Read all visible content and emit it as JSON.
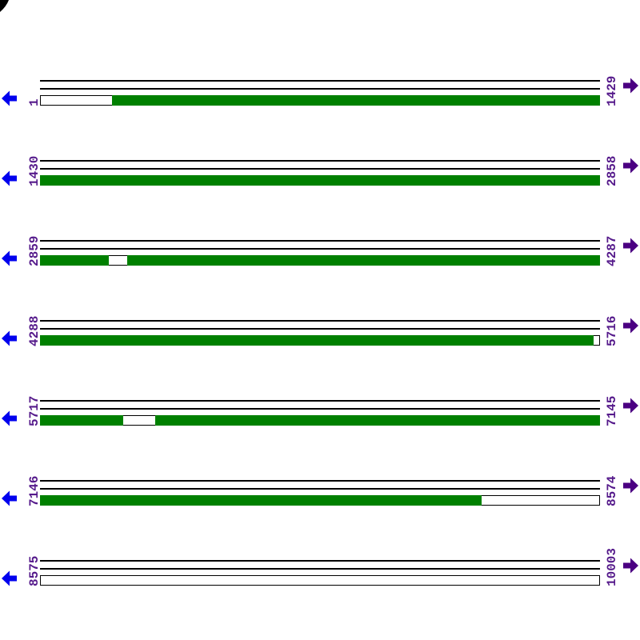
{
  "diagram": {
    "kind": "sequence-alignment-coverage",
    "row_span_bases": 1429,
    "colors": {
      "match": "#008000",
      "empty": "#ffffff",
      "line": "#000000",
      "label": "#551a8b",
      "left_arrow": "#0000ee",
      "right_arrow": "#4b0082"
    },
    "icons": {
      "left_arrow": "arrow-pointing-left",
      "right_arrow": "arrow-pointing-right",
      "clipped_glyph": "partial-character-cut-off-at-top-left"
    },
    "rows": [
      {
        "start_label": "1",
        "end_label": "1429",
        "segments": [
          {
            "type": "empty",
            "from": 0,
            "to": 0.1286
          },
          {
            "type": "match",
            "from": 0.1286,
            "to": 1
          }
        ]
      },
      {
        "start_label": "1430",
        "end_label": "2858",
        "segments": [
          {
            "type": "match",
            "from": 0,
            "to": 1
          }
        ]
      },
      {
        "start_label": "2859",
        "end_label": "4287",
        "segments": [
          {
            "type": "match",
            "from": 0,
            "to": 0.1229
          },
          {
            "type": "empty",
            "from": 0.1229,
            "to": 0.1557
          },
          {
            "type": "match",
            "from": 0.1557,
            "to": 1
          }
        ]
      },
      {
        "start_label": "4288",
        "end_label": "5716",
        "segments": [
          {
            "type": "match",
            "from": 0,
            "to": 0.9886
          },
          {
            "type": "empty",
            "from": 0.9886,
            "to": 1
          }
        ]
      },
      {
        "start_label": "5717",
        "end_label": "7145",
        "segments": [
          {
            "type": "match",
            "from": 0,
            "to": 0.1486
          },
          {
            "type": "empty",
            "from": 0.1486,
            "to": 0.2057
          },
          {
            "type": "match",
            "from": 0.2057,
            "to": 1
          }
        ]
      },
      {
        "start_label": "7146",
        "end_label": "8574",
        "segments": [
          {
            "type": "match",
            "from": 0,
            "to": 0.7886
          },
          {
            "type": "empty",
            "from": 0.7886,
            "to": 1
          }
        ]
      },
      {
        "start_label": "8575",
        "end_label": "10003",
        "segments": [
          {
            "type": "empty",
            "from": 0,
            "to": 1
          }
        ]
      }
    ]
  }
}
